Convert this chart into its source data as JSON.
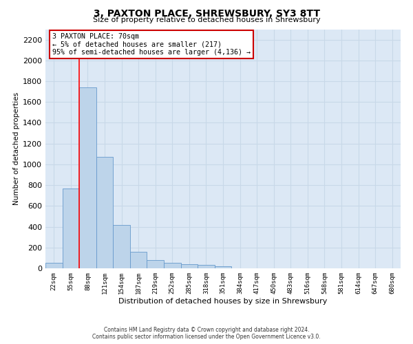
{
  "title": "3, PAXTON PLACE, SHREWSBURY, SY3 8TT",
  "subtitle": "Size of property relative to detached houses in Shrewsbury",
  "xlabel": "Distribution of detached houses by size in Shrewsbury",
  "ylabel": "Number of detached properties",
  "footer_line1": "Contains HM Land Registry data © Crown copyright and database right 2024.",
  "footer_line2": "Contains public sector information licensed under the Open Government Licence v3.0.",
  "bar_labels": [
    "22sqm",
    "55sqm",
    "88sqm",
    "121sqm",
    "154sqm",
    "187sqm",
    "219sqm",
    "252sqm",
    "285sqm",
    "318sqm",
    "351sqm",
    "384sqm",
    "417sqm",
    "450sqm",
    "483sqm",
    "516sqm",
    "548sqm",
    "581sqm",
    "614sqm",
    "647sqm",
    "680sqm"
  ],
  "bar_values": [
    55,
    765,
    1740,
    1075,
    420,
    160,
    80,
    50,
    40,
    30,
    20,
    0,
    0,
    0,
    0,
    0,
    0,
    0,
    0,
    0,
    0
  ],
  "bar_color": "#bdd4ea",
  "bar_edge_color": "#6699cc",
  "grid_color": "#c8d8e8",
  "background_color": "#dce8f5",
  "annotation_text": "3 PAXTON PLACE: 70sqm\n← 5% of detached houses are smaller (217)\n95% of semi-detached houses are larger (4,136) →",
  "annotation_box_color": "#ffffff",
  "annotation_box_edge": "#cc0000",
  "red_line_x": 1.5,
  "ylim": [
    0,
    2300
  ],
  "yticks": [
    0,
    200,
    400,
    600,
    800,
    1000,
    1200,
    1400,
    1600,
    1800,
    2000,
    2200
  ]
}
